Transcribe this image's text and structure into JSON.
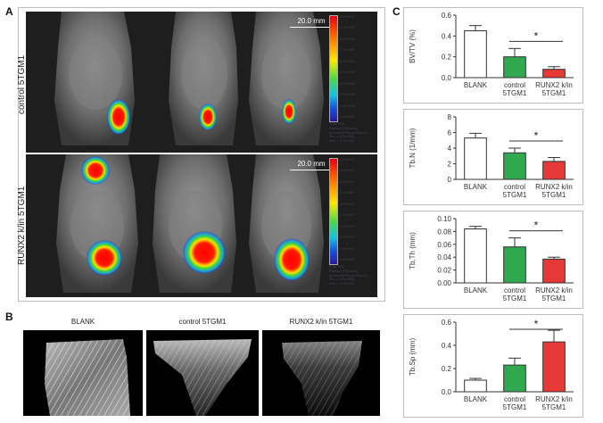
{
  "panels": {
    "a": {
      "letter": "A"
    },
    "b": {
      "letter": "B"
    },
    "c": {
      "letter": "C"
    }
  },
  "panel_a": {
    "row_labels": [
      "control 5TGM1",
      "RUNX2 k/in 5TGM1"
    ],
    "scale_bar": "20.0 mm",
    "colorbar_top": {
      "ticks": [
        "1.0e+007",
        "9.0e+006",
        "8.0e+006",
        "7.0e+006",
        "6.0e+006",
        "5.0e+006",
        "4.0e+006",
        "3.0e+006",
        "2.0e+006",
        "1.0e+006"
      ],
      "note": [
        "1.0e+006",
        "Radiant Efficiency",
        "(p/sec/cm²/sr)/(µW/cm²)",
        "Min = 1.0e+006",
        "Max = 1.0e+007"
      ]
    },
    "colorbar_bottom": {
      "ticks": [
        "5.0e+007",
        "4.5e+007",
        "4.0e+007",
        "3.5e+007",
        "3.0e+007",
        "2.5e+007",
        "2.0e+007",
        "1.5e+007",
        "1.0e+007",
        "5.0e+006"
      ],
      "note": [
        "5.0e+007",
        "Radiant Efficiency",
        "(p/sec/cm²/sr)/(µW/cm²)",
        "Min = 5.0e+006",
        "Max = 5.0e+007"
      ]
    }
  },
  "panel_b": {
    "labels": [
      "BLANK",
      "control 5TGM1",
      "RUNX2 k/in 5TGM1"
    ]
  },
  "chart_data": [
    {
      "type": "bar",
      "ylabel": "BV/TV (%)",
      "ylim": [
        0,
        0.6
      ],
      "yticks": [
        "0.0",
        "0.2",
        "0.4",
        "0.6"
      ],
      "categories": [
        "BLANK",
        "control\n5TGM1",
        "RUNX2 k/in\n5TGM1"
      ],
      "values": [
        0.45,
        0.2,
        0.08
      ],
      "errors": [
        0.05,
        0.08,
        0.025
      ],
      "colors": [
        "#ffffff",
        "#2fa84f",
        "#e53935"
      ],
      "significance": {
        "from": 1,
        "to": 2,
        "label": "*"
      }
    },
    {
      "type": "bar",
      "ylabel": "Tb.N (1/mm)",
      "ylim": [
        0,
        8
      ],
      "yticks": [
        "0",
        "2",
        "4",
        "6",
        "8"
      ],
      "categories": [
        "BLANK",
        "control\n5TGM1",
        "RUNX2 k/in\n5TGM1"
      ],
      "values": [
        5.3,
        3.4,
        2.3
      ],
      "errors": [
        0.6,
        0.6,
        0.5
      ],
      "colors": [
        "#ffffff",
        "#2fa84f",
        "#e53935"
      ],
      "significance": {
        "from": 1,
        "to": 2,
        "label": "*"
      }
    },
    {
      "type": "bar",
      "ylabel": "Tb.Th (mm)",
      "ylim": [
        0,
        0.1
      ],
      "yticks": [
        "0.00",
        "0.02",
        "0.04",
        "0.06",
        "0.08",
        "0.10"
      ],
      "categories": [
        "BLANK",
        "control\n5TGM1",
        "RUNX2 k/in\n5TGM1"
      ],
      "values": [
        0.084,
        0.056,
        0.037
      ],
      "errors": [
        0.004,
        0.014,
        0.003
      ],
      "colors": [
        "#ffffff",
        "#2fa84f",
        "#e53935"
      ],
      "significance": {
        "from": 1,
        "to": 2,
        "label": "*"
      }
    },
    {
      "type": "bar",
      "ylabel": "Tb.Sp (mm)",
      "ylim": [
        0,
        0.6
      ],
      "yticks": [
        "0.0",
        "0.2",
        "0.4",
        "0.6"
      ],
      "categories": [
        "BLANK",
        "control\n5TGM1",
        "RUNX2 k/in\n5TGM1"
      ],
      "values": [
        0.1,
        0.23,
        0.43
      ],
      "errors": [
        0.015,
        0.06,
        0.1
      ],
      "colors": [
        "#ffffff",
        "#2fa84f",
        "#e53935"
      ],
      "significance": {
        "from": 1,
        "to": 2,
        "label": "*"
      }
    }
  ]
}
